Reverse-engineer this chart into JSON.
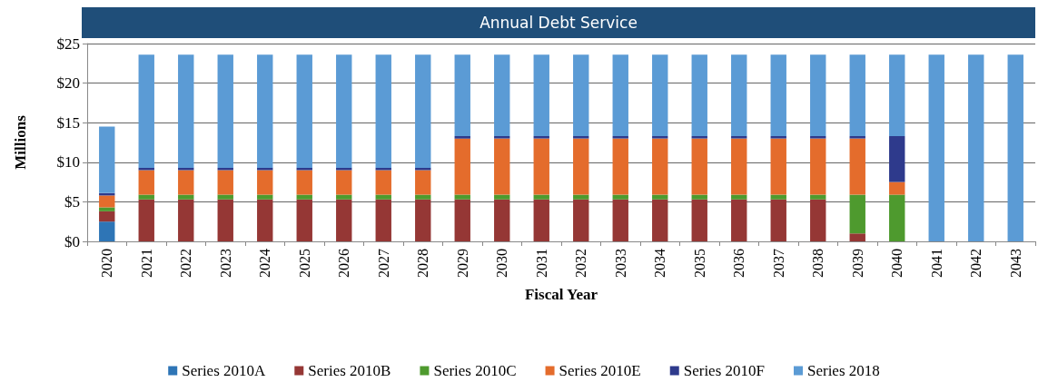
{
  "chart_data": {
    "type": "bar",
    "title": "Annual Debt Service",
    "xlabel": "Fiscal Year",
    "ylabel": "Millions",
    "stacked": true,
    "grid": "y",
    "legend": "bottom",
    "categories": [
      "2020",
      "2021",
      "2022",
      "2023",
      "2024",
      "2025",
      "2026",
      "2027",
      "2028",
      "2029",
      "2030",
      "2031",
      "2032",
      "2033",
      "2034",
      "2035",
      "2036",
      "2037",
      "2038",
      "2039",
      "2040",
      "2041",
      "2042",
      "2043"
    ],
    "ylim": [
      0,
      25
    ],
    "yticks": [
      {
        "value": 0,
        "label": "$0"
      },
      {
        "value": 5,
        "label": "$5"
      },
      {
        "value": 10,
        "label": "$10"
      },
      {
        "value": 15,
        "label": "$15"
      },
      {
        "value": 20,
        "label": "$20"
      },
      {
        "value": 25,
        "label": "$25"
      }
    ],
    "series": [
      {
        "name": "Series 2010A",
        "color": "#2e75b6",
        "values": [
          2.5,
          0,
          0,
          0,
          0,
          0,
          0,
          0,
          0,
          0,
          0,
          0,
          0,
          0,
          0,
          0,
          0,
          0,
          0,
          0,
          0,
          0,
          0,
          0
        ]
      },
      {
        "name": "Series 2010B",
        "color": "#953735",
        "values": [
          1.3,
          5.3,
          5.3,
          5.3,
          5.3,
          5.3,
          5.3,
          5.3,
          5.3,
          5.3,
          5.3,
          5.3,
          5.3,
          5.3,
          5.3,
          5.3,
          5.3,
          5.3,
          5.3,
          1.0,
          0,
          0,
          0,
          0
        ]
      },
      {
        "name": "Series 2010C",
        "color": "#4e9a2e",
        "values": [
          0.5,
          0.6,
          0.6,
          0.6,
          0.6,
          0.6,
          0.6,
          0.6,
          0.6,
          0.6,
          0.6,
          0.6,
          0.6,
          0.6,
          0.6,
          0.6,
          0.6,
          0.6,
          0.6,
          4.9,
          5.9,
          0,
          0,
          0
        ]
      },
      {
        "name": "Series 2010E",
        "color": "#e46c2c",
        "values": [
          1.5,
          3.1,
          3.1,
          3.1,
          3.1,
          3.1,
          3.1,
          3.1,
          3.1,
          7.1,
          7.1,
          7.1,
          7.1,
          7.1,
          7.1,
          7.1,
          7.1,
          7.1,
          7.1,
          7.1,
          1.6,
          0,
          0,
          0
        ]
      },
      {
        "name": "Series 2010F",
        "color": "#2e3a8c",
        "values": [
          0.3,
          0.3,
          0.3,
          0.3,
          0.3,
          0.3,
          0.3,
          0.3,
          0.3,
          0.3,
          0.3,
          0.3,
          0.3,
          0.3,
          0.3,
          0.3,
          0.3,
          0.3,
          0.3,
          0.3,
          5.8,
          0,
          0,
          0
        ]
      },
      {
        "name": "Series 2018",
        "color": "#5b9bd5",
        "values": [
          8.4,
          14.3,
          14.3,
          14.3,
          14.3,
          14.3,
          14.3,
          14.3,
          14.3,
          10.3,
          10.3,
          10.3,
          10.3,
          10.3,
          10.3,
          10.3,
          10.3,
          10.3,
          10.3,
          10.3,
          10.3,
          23.6,
          23.6,
          23.6
        ]
      }
    ]
  }
}
